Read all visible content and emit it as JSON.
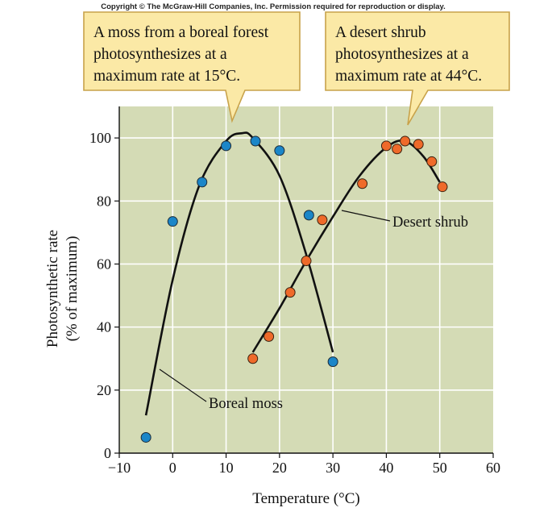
{
  "copyright": "Copyright © The McGraw-Hill Companies, Inc. Permission required for reproduction or display.",
  "callouts": {
    "left": [
      "A moss from a boreal forest",
      "photosynthesizes at a",
      "maximum rate at 15°C."
    ],
    "right": [
      "A desert shrub",
      "photosynthesizes at a",
      "maximum rate at 44°C."
    ]
  },
  "colors": {
    "plot_background": "#d4dbb5",
    "callout_fill": "#fbe9a6",
    "callout_stroke": "#c8a24a",
    "boreal_moss": "#1b86c8",
    "desert_shrub": "#ef6a2a",
    "curve": "#111111",
    "gridline": "#ffffff"
  },
  "chart_data": {
    "type": "scatter",
    "xlabel": "Temperature (°C)",
    "ylabel": [
      "Photosynthetic rate",
      "(% of maximum)"
    ],
    "xlim": [
      -10,
      60
    ],
    "ylim": [
      0,
      110
    ],
    "xticks": [
      -10,
      0,
      10,
      20,
      30,
      40,
      50,
      60
    ],
    "yticks": [
      0,
      20,
      40,
      60,
      80,
      100
    ],
    "xtick_labels": [
      "−10",
      "0",
      "10",
      "20",
      "30",
      "40",
      "50",
      "60"
    ],
    "ytick_labels": [
      "0",
      "20",
      "40",
      "60",
      "80",
      "100"
    ],
    "grid": true,
    "series": [
      {
        "name": "Boreal moss",
        "x": [
          -5,
          0,
          5.5,
          10,
          15.5,
          20,
          25.5,
          30
        ],
        "y": [
          5,
          73.5,
          86,
          97.5,
          99,
          96,
          75.5,
          29
        ],
        "fit_x": [
          -5,
          0,
          5,
          10,
          13,
          15,
          20,
          25,
          30
        ],
        "fit_y": [
          12,
          55,
          85,
          99,
          101.5,
          100,
          88,
          63,
          32
        ]
      },
      {
        "name": "Desert shrub",
        "x": [
          15,
          18,
          22,
          25,
          28,
          35.5,
          40,
          42,
          43.5,
          46,
          48.5,
          50.5
        ],
        "y": [
          30,
          37,
          51,
          61,
          74,
          85.5,
          97.5,
          96.5,
          99,
          98,
          92.5,
          84.5
        ],
        "fit_x": [
          15,
          20,
          25,
          30,
          35,
          40,
          43.5,
          47,
          50
        ],
        "fit_y": [
          32,
          46,
          61,
          75,
          88,
          97,
          99,
          94,
          86
        ]
      }
    ],
    "annotations": [
      "Boreal moss",
      "Desert shrub"
    ]
  }
}
